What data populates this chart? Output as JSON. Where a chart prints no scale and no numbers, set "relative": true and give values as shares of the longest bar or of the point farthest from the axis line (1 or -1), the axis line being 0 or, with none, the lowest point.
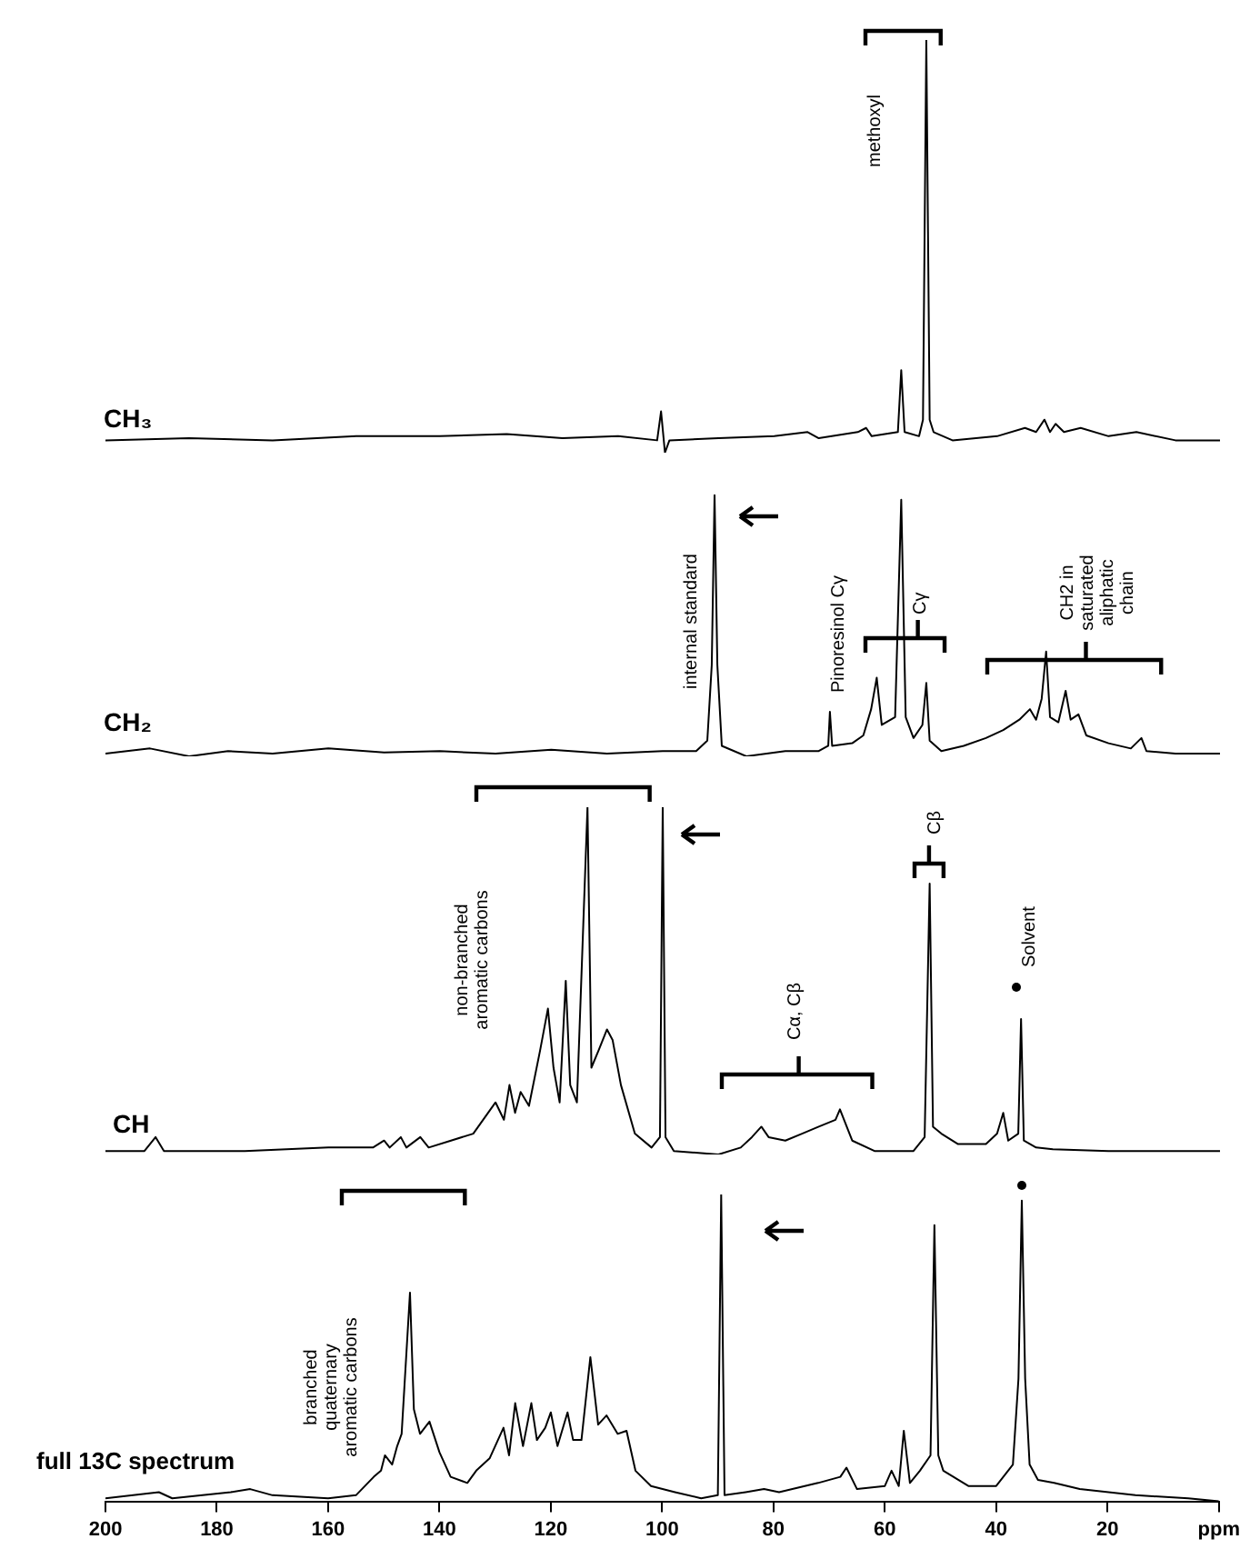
{
  "chart_data": [
    {
      "type": "line",
      "xlim": [
        200,
        0
      ],
      "relative": true,
      "tick_labels": false,
      "x": [
        200,
        185,
        170,
        155,
        140,
        128,
        118,
        108,
        101,
        100.3,
        99.6,
        98.8,
        90,
        80,
        74,
        72,
        65,
        63.5,
        62.5,
        57.8,
        57.2,
        56.6,
        54,
        53.3,
        52.7,
        52.1,
        51.4,
        48,
        40,
        35,
        33,
        31.5,
        30.5,
        29.5,
        28,
        25,
        20,
        15,
        8,
        0
      ],
      "series": [
        {
          "name": "CH₃",
          "color": "#000000",
          "values": [
            0.03,
            0.035,
            0.03,
            0.04,
            0.04,
            0.045,
            0.035,
            0.04,
            0.03,
            0.1,
            0,
            0.03,
            0.035,
            0.04,
            0.05,
            0.035,
            0.05,
            0.06,
            0.04,
            0.05,
            0.2,
            0.05,
            0.04,
            0.08,
            1,
            0.08,
            0.05,
            0.03,
            0.04,
            0.06,
            0.05,
            0.08,
            0.05,
            0.07,
            0.05,
            0.06,
            0.04,
            0.05,
            0.03,
            0.03
          ]
        }
      ],
      "annotations": [
        "methoxyl"
      ]
    },
    {
      "type": "line",
      "xlim": [
        200,
        0
      ],
      "relative": true,
      "tick_labels": false,
      "x": [
        200,
        192,
        185,
        178,
        170,
        160,
        150,
        140,
        130,
        120,
        110,
        100,
        94,
        92,
        91.2,
        90.7,
        90.2,
        89.4,
        85,
        78,
        72,
        70.3,
        70,
        69.6,
        66,
        64,
        62.6,
        61.6,
        60.7,
        58.3,
        57.2,
        56.4,
        55,
        53.4,
        52.7,
        52.1,
        50,
        46,
        42,
        38.9,
        36,
        34.1,
        33,
        32,
        31.2,
        30.5,
        29,
        27.7,
        26.8,
        25.4,
        24,
        20,
        16,
        14.1,
        13.2,
        8,
        0
      ],
      "series": [
        {
          "name": "CH₂",
          "color": "#000000",
          "values": [
            0.01,
            0.03,
            0,
            0.02,
            0.01,
            0.03,
            0.015,
            0.02,
            0.01,
            0.025,
            0.01,
            0.02,
            0.02,
            0.06,
            0.35,
            1,
            0.35,
            0.04,
            0,
            0.02,
            0.02,
            0.04,
            0.17,
            0.04,
            0.05,
            0.08,
            0.18,
            0.3,
            0.12,
            0.15,
            0.98,
            0.15,
            0.07,
            0.12,
            0.28,
            0.06,
            0.02,
            0.04,
            0.07,
            0.1,
            0.14,
            0.18,
            0.14,
            0.22,
            0.4,
            0.15,
            0.13,
            0.25,
            0.14,
            0.16,
            0.08,
            0.05,
            0.03,
            0.07,
            0.02,
            0.01,
            0.01
          ]
        }
      ],
      "annotations": [
        "internal standard",
        "Pinoresinol Cγ",
        "Cγ",
        "CH2 in saturated aliphatic chain"
      ]
    },
    {
      "type": "line",
      "xlim": [
        200,
        0
      ],
      "relative": true,
      "tick_labels": false,
      "x": [
        200,
        193,
        191,
        189.5,
        175,
        160,
        152,
        150,
        149,
        147,
        146,
        143.5,
        142,
        138,
        134,
        130,
        128.5,
        127.5,
        126.5,
        125.5,
        124,
        122,
        120.6,
        119.6,
        118.5,
        117.4,
        116.6,
        115.4,
        113.5,
        112.8,
        111.5,
        110,
        109,
        107.5,
        105,
        102,
        100.5,
        100,
        99.5,
        98,
        90,
        86,
        84,
        82.3,
        81,
        78,
        75,
        72,
        69,
        68.2,
        66,
        62,
        55,
        53,
        52.1,
        51.5,
        50,
        47,
        42,
        40,
        38.9,
        38,
        36.2,
        35.7,
        35.2,
        33,
        30,
        20,
        10,
        0
      ],
      "series": [
        {
          "name": "CH",
          "color": "#000000",
          "values": [
            0.01,
            0.01,
            0.05,
            0.01,
            0.01,
            0.02,
            0.02,
            0.04,
            0.02,
            0.05,
            0.02,
            0.05,
            0.02,
            0.04,
            0.06,
            0.15,
            0.1,
            0.2,
            0.12,
            0.18,
            0.14,
            0.3,
            0.42,
            0.25,
            0.15,
            0.5,
            0.2,
            0.15,
            1,
            0.25,
            0.3,
            0.36,
            0.33,
            0.2,
            0.06,
            0.02,
            0.05,
            1,
            0.05,
            0.01,
            0,
            0.02,
            0.05,
            0.08,
            0.05,
            0.04,
            0.06,
            0.08,
            0.1,
            0.13,
            0.04,
            0.01,
            0.01,
            0.05,
            0.78,
            0.08,
            0.06,
            0.03,
            0.03,
            0.06,
            0.12,
            0.04,
            0.06,
            0.39,
            0.04,
            0.02,
            0.015,
            0.01,
            0.01,
            0.01
          ]
        }
      ],
      "annotations": [
        "non-branched aromatic carbons",
        "Cα, Cβ",
        "Cβ",
        "Solvent"
      ]
    },
    {
      "type": "line",
      "xlim": [
        200,
        0
      ],
      "relative": true,
      "xticks": [
        200,
        180,
        160,
        140,
        120,
        100,
        80,
        60,
        40,
        20,
        {
          "value": 0,
          "label": "ppm"
        }
      ],
      "x": [
        200,
        190.4,
        188,
        177.5,
        174,
        170,
        160,
        155,
        151.8,
        150.5,
        149.8,
        148.5,
        147.6,
        146.8,
        145.3,
        144.6,
        143.5,
        141.8,
        140,
        138,
        135,
        133.4,
        131,
        128.5,
        127.5,
        126.4,
        125,
        123.5,
        122.5,
        121,
        120,
        118.8,
        117,
        116,
        114.5,
        112.9,
        111.5,
        110,
        108,
        106.4,
        104.8,
        102,
        97.7,
        93,
        90,
        89.4,
        88.8,
        85,
        81.7,
        79,
        72,
        68,
        66.9,
        65,
        60,
        58.8,
        57.5,
        56.6,
        55.5,
        53.7,
        51.8,
        51.1,
        50.4,
        49.5,
        45,
        40,
        37,
        36,
        35.4,
        34.8,
        34,
        32.5,
        29.6,
        25,
        15,
        5.5,
        0
      ],
      "series": [
        {
          "name": "full 13C spectrum",
          "color": "#000000",
          "values": [
            0.01,
            0.03,
            0.01,
            0.03,
            0.04,
            0.02,
            0.01,
            0.02,
            0.08,
            0.1,
            0.15,
            0.12,
            0.18,
            0.22,
            0.68,
            0.3,
            0.22,
            0.26,
            0.16,
            0.08,
            0.06,
            0.1,
            0.14,
            0.24,
            0.15,
            0.32,
            0.18,
            0.32,
            0.2,
            0.24,
            0.29,
            0.18,
            0.29,
            0.2,
            0.2,
            0.47,
            0.25,
            0.28,
            0.22,
            0.23,
            0.1,
            0.05,
            0.03,
            0.01,
            0.02,
            1,
            0.02,
            0.03,
            0.04,
            0.03,
            0.06,
            0.08,
            0.11,
            0.04,
            0.05,
            0.1,
            0.05,
            0.23,
            0.06,
            0.1,
            0.15,
            0.9,
            0.15,
            0.1,
            0.05,
            0.05,
            0.12,
            0.4,
            0.98,
            0.4,
            0.12,
            0.07,
            0.06,
            0.04,
            0.02,
            0.01,
            0
          ]
        }
      ],
      "annotations": [
        "branched quaternary aromatic carbons"
      ]
    }
  ]
}
